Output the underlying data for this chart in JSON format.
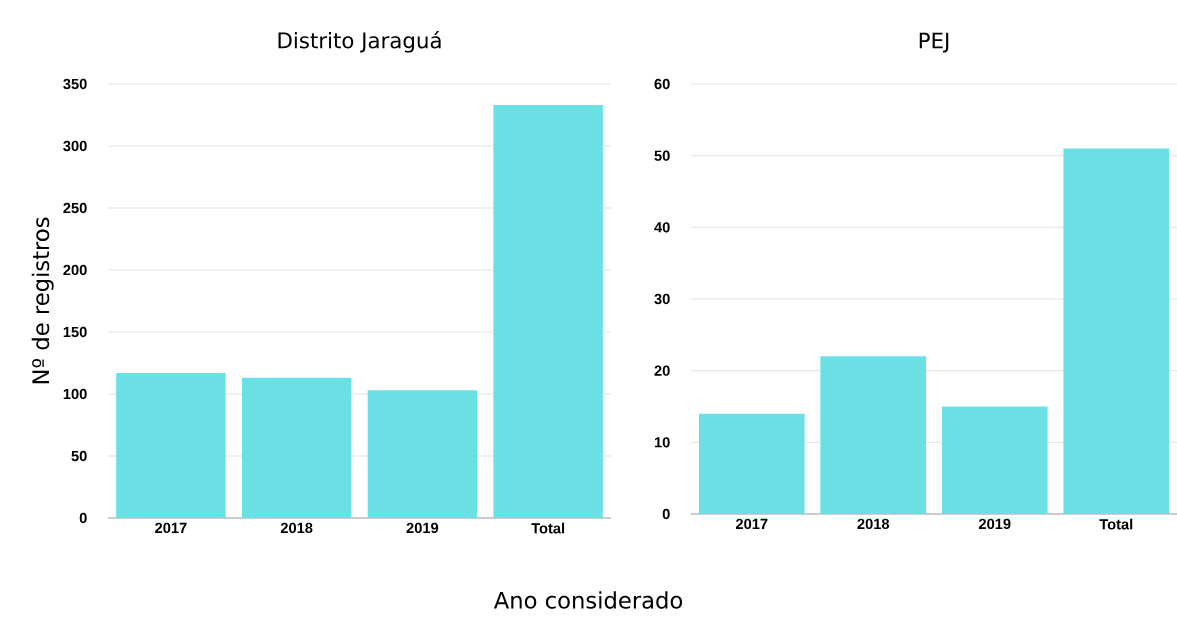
{
  "chart_data": [
    {
      "type": "bar",
      "title": "Distrito Jaraguá",
      "ylabel": "Nº de registros",
      "xlabel": "Ano considerado",
      "categories": [
        "2017",
        "2018",
        "2019",
        "Total"
      ],
      "values": [
        117,
        113,
        103,
        333
      ],
      "color": "#6ae0e4",
      "ylim": [
        0,
        350
      ],
      "yticks": [
        0,
        50,
        100,
        150,
        200,
        250,
        300,
        350
      ],
      "grid": "y"
    },
    {
      "type": "bar",
      "title": "PEJ",
      "categories": [
        "2017",
        "2018",
        "2019",
        "Total"
      ],
      "values": [
        14,
        22,
        15,
        51
      ],
      "color": "#6ae0e4",
      "ylim": [
        0,
        60
      ],
      "yticks": [
        0,
        10,
        20,
        30,
        40,
        50,
        60
      ],
      "grid": "y"
    }
  ]
}
